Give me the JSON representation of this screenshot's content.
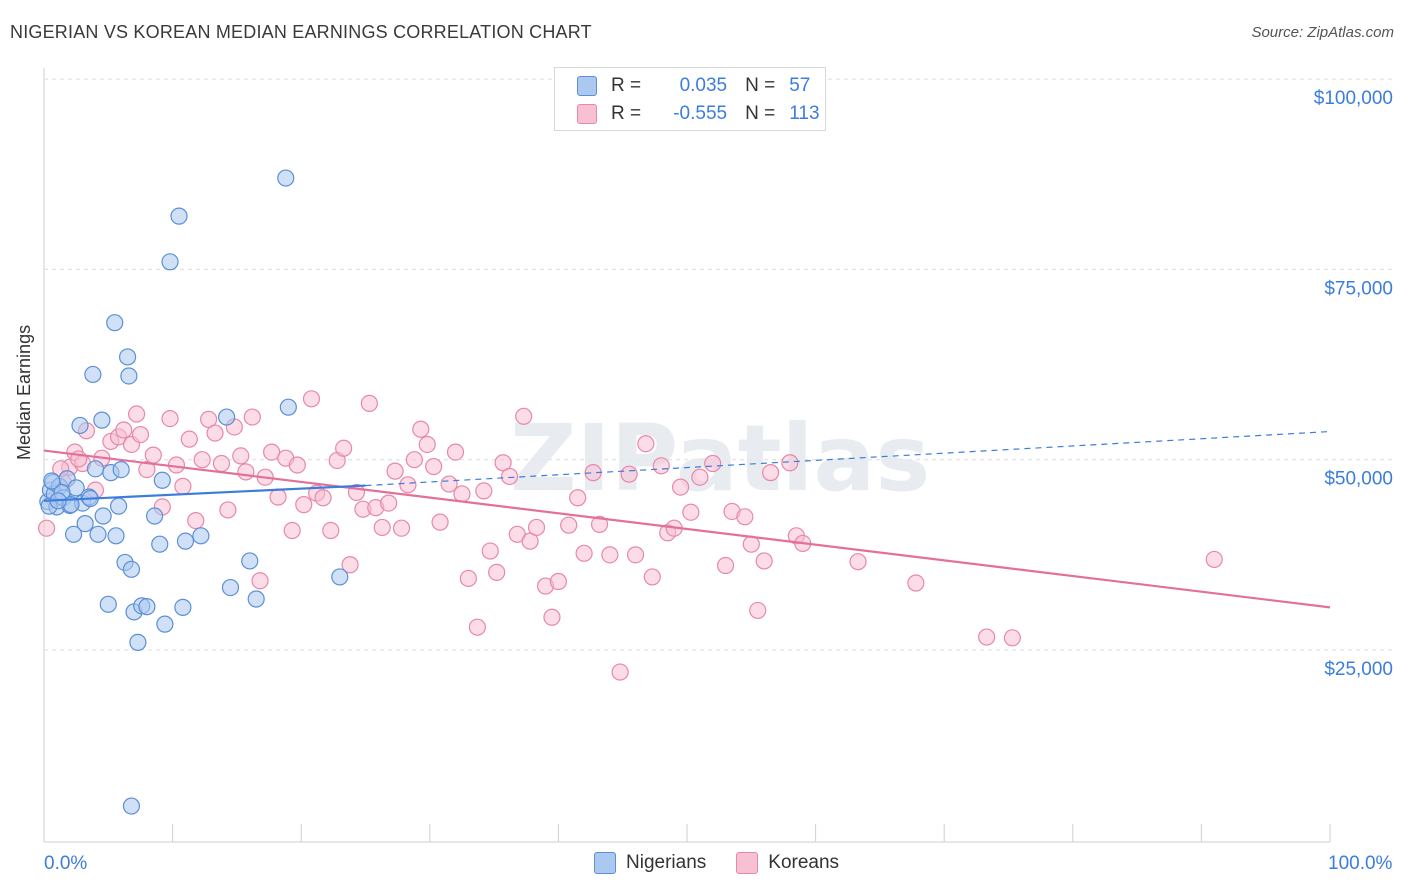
{
  "title": "NIGERIAN VS KOREAN MEDIAN EARNINGS CORRELATION CHART",
  "source": "Source: ZipAtlas.com",
  "watermark": "ZIPatlas",
  "legend": {
    "rows": [
      {
        "r_label": "R =",
        "r_value": "0.035",
        "n_label": "N =",
        "n_value": "57"
      },
      {
        "r_label": "R =",
        "r_value": "-0.555",
        "n_label": "N =",
        "n_value": "113"
      }
    ]
  },
  "bottom_legend": [
    "Nigerians",
    "Koreans"
  ],
  "colors": {
    "nigerians_fill": "#aac8f0",
    "nigerians_stroke": "#5b8fd6",
    "nigerians_line": "#3b7ddd",
    "koreans_fill": "#f8c0d3",
    "koreans_stroke": "#e888a8",
    "koreans_line": "#e2709a",
    "tick_label": "#3b7ddd",
    "grid": "#dcdcdc"
  },
  "chart_data": {
    "type": "scatter",
    "title": "NIGERIAN VS KOREAN MEDIAN EARNINGS CORRELATION CHART",
    "xlabel": "",
    "ylabel": "Median Earnings",
    "xlim": [
      0,
      100
    ],
    "ylim": [
      0,
      105000
    ],
    "x_tick_labels": [
      "0.0%",
      "100.0%"
    ],
    "y_ticks": [
      25000,
      50000,
      75000,
      100000
    ],
    "y_tick_labels": [
      "$25,000",
      "$50,000",
      "$75,000",
      "$100,000"
    ],
    "series": [
      {
        "name": "Nigerians",
        "R": 0.035,
        "N": 57,
        "trend": {
          "x0": 0,
          "y0": 44600,
          "x1": 25,
          "y1": 46600,
          "dashed_to_x": 100,
          "dashed_to_y": 53700
        },
        "points": [
          [
            0.3,
            44500
          ],
          [
            0.5,
            46000
          ],
          [
            0.7,
            47000
          ],
          [
            0.8,
            45500
          ],
          [
            1.0,
            43800
          ],
          [
            1.2,
            46500
          ],
          [
            1.5,
            45000
          ],
          [
            1.8,
            47500
          ],
          [
            2.0,
            44000
          ],
          [
            2.3,
            40200
          ],
          [
            2.5,
            46300
          ],
          [
            2.8,
            54500
          ],
          [
            3.0,
            44300
          ],
          [
            3.2,
            41600
          ],
          [
            3.5,
            45100
          ],
          [
            3.8,
            61200
          ],
          [
            4.0,
            48800
          ],
          [
            4.2,
            40200
          ],
          [
            4.5,
            55200
          ],
          [
            4.6,
            42600
          ],
          [
            5.0,
            31000
          ],
          [
            5.2,
            48300
          ],
          [
            5.5,
            68000
          ],
          [
            5.6,
            40000
          ],
          [
            5.8,
            43900
          ],
          [
            6.0,
            48700
          ],
          [
            6.3,
            36500
          ],
          [
            6.5,
            63500
          ],
          [
            6.6,
            61000
          ],
          [
            6.8,
            35600
          ],
          [
            7.0,
            30000
          ],
          [
            7.3,
            26000
          ],
          [
            7.6,
            30800
          ],
          [
            8.0,
            30700
          ],
          [
            8.6,
            42600
          ],
          [
            9.0,
            38900
          ],
          [
            9.2,
            47300
          ],
          [
            9.4,
            28400
          ],
          [
            9.8,
            76000
          ],
          [
            10.5,
            82000
          ],
          [
            10.8,
            30600
          ],
          [
            11.0,
            39300
          ],
          [
            12.2,
            40000
          ],
          [
            14.2,
            55600
          ],
          [
            14.5,
            33200
          ],
          [
            16.0,
            36700
          ],
          [
            16.5,
            31700
          ],
          [
            18.8,
            87000
          ],
          [
            19.0,
            56900
          ],
          [
            23.0,
            34600
          ],
          [
            0.4,
            43900
          ],
          [
            1.4,
            45700
          ],
          [
            2.1,
            44100
          ],
          [
            3.6,
            44900
          ],
          [
            6.8,
            4500
          ],
          [
            0.6,
            47200
          ],
          [
            1.1,
            44600
          ]
        ]
      },
      {
        "name": "Koreans",
        "R": -0.555,
        "N": 113,
        "trend": {
          "x0": 0,
          "y0": 51200,
          "x1": 100,
          "y1": 30600
        },
        "points": [
          [
            0.2,
            41000
          ],
          [
            0.8,
            44800
          ],
          [
            1.5,
            47000
          ],
          [
            2.0,
            49000
          ],
          [
            2.4,
            51000
          ],
          [
            3.0,
            49500
          ],
          [
            3.3,
            53800
          ],
          [
            4.0,
            46000
          ],
          [
            4.5,
            50200
          ],
          [
            5.2,
            52400
          ],
          [
            5.8,
            53000
          ],
          [
            6.2,
            53900
          ],
          [
            6.8,
            52000
          ],
          [
            7.2,
            56000
          ],
          [
            7.5,
            53300
          ],
          [
            8.0,
            48700
          ],
          [
            8.5,
            50600
          ],
          [
            9.2,
            43800
          ],
          [
            9.8,
            55400
          ],
          [
            10.3,
            49300
          ],
          [
            10.8,
            46500
          ],
          [
            11.3,
            52700
          ],
          [
            11.8,
            42000
          ],
          [
            12.3,
            50000
          ],
          [
            12.8,
            55300
          ],
          [
            13.3,
            53500
          ],
          [
            13.8,
            49500
          ],
          [
            14.3,
            43400
          ],
          [
            14.8,
            54300
          ],
          [
            15.3,
            50500
          ],
          [
            15.7,
            48400
          ],
          [
            16.2,
            55600
          ],
          [
            16.8,
            34100
          ],
          [
            17.2,
            47700
          ],
          [
            17.7,
            51000
          ],
          [
            18.2,
            45100
          ],
          [
            18.8,
            50200
          ],
          [
            19.3,
            40700
          ],
          [
            19.7,
            49300
          ],
          [
            20.2,
            44100
          ],
          [
            20.8,
            58000
          ],
          [
            21.2,
            45600
          ],
          [
            21.7,
            45000
          ],
          [
            22.3,
            40700
          ],
          [
            22.8,
            49900
          ],
          [
            23.3,
            51500
          ],
          [
            23.8,
            36200
          ],
          [
            24.3,
            45700
          ],
          [
            24.8,
            43500
          ],
          [
            25.3,
            57400
          ],
          [
            25.8,
            43700
          ],
          [
            26.3,
            41100
          ],
          [
            26.8,
            44300
          ],
          [
            27.3,
            48500
          ],
          [
            27.8,
            41000
          ],
          [
            28.3,
            46700
          ],
          [
            28.8,
            50000
          ],
          [
            29.3,
            54000
          ],
          [
            29.8,
            52000
          ],
          [
            30.3,
            49100
          ],
          [
            30.8,
            41800
          ],
          [
            31.5,
            46800
          ],
          [
            32.0,
            51000
          ],
          [
            32.5,
            45500
          ],
          [
            33.0,
            34400
          ],
          [
            33.7,
            28000
          ],
          [
            34.2,
            45900
          ],
          [
            34.7,
            38000
          ],
          [
            35.2,
            35200
          ],
          [
            35.7,
            49600
          ],
          [
            36.2,
            47800
          ],
          [
            36.8,
            40200
          ],
          [
            37.3,
            55700
          ],
          [
            37.8,
            39300
          ],
          [
            38.3,
            41100
          ],
          [
            39.0,
            33400
          ],
          [
            39.5,
            29300
          ],
          [
            40.0,
            34000
          ],
          [
            40.8,
            41400
          ],
          [
            41.5,
            45000
          ],
          [
            42.0,
            37700
          ],
          [
            42.7,
            48300
          ],
          [
            43.2,
            41500
          ],
          [
            44.0,
            37500
          ],
          [
            44.8,
            22100
          ],
          [
            45.5,
            48100
          ],
          [
            46.0,
            37500
          ],
          [
            46.8,
            52100
          ],
          [
            47.3,
            34600
          ],
          [
            48.0,
            49200
          ],
          [
            48.5,
            40400
          ],
          [
            49.0,
            41000
          ],
          [
            49.5,
            46400
          ],
          [
            50.3,
            43100
          ],
          [
            51.0,
            47700
          ],
          [
            52.0,
            49500
          ],
          [
            53.0,
            36100
          ],
          [
            53.5,
            43200
          ],
          [
            54.5,
            42500
          ],
          [
            55.0,
            38900
          ],
          [
            55.5,
            30200
          ],
          [
            56.0,
            36700
          ],
          [
            56.5,
            48300
          ],
          [
            58.0,
            49600
          ],
          [
            58.5,
            40000
          ],
          [
            59.0,
            39000
          ],
          [
            63.3,
            36600
          ],
          [
            67.8,
            33800
          ],
          [
            73.3,
            26700
          ],
          [
            75.3,
            26600
          ],
          [
            91.0,
            36900
          ],
          [
            1.3,
            48800
          ],
          [
            2.7,
            50100
          ]
        ]
      }
    ]
  }
}
